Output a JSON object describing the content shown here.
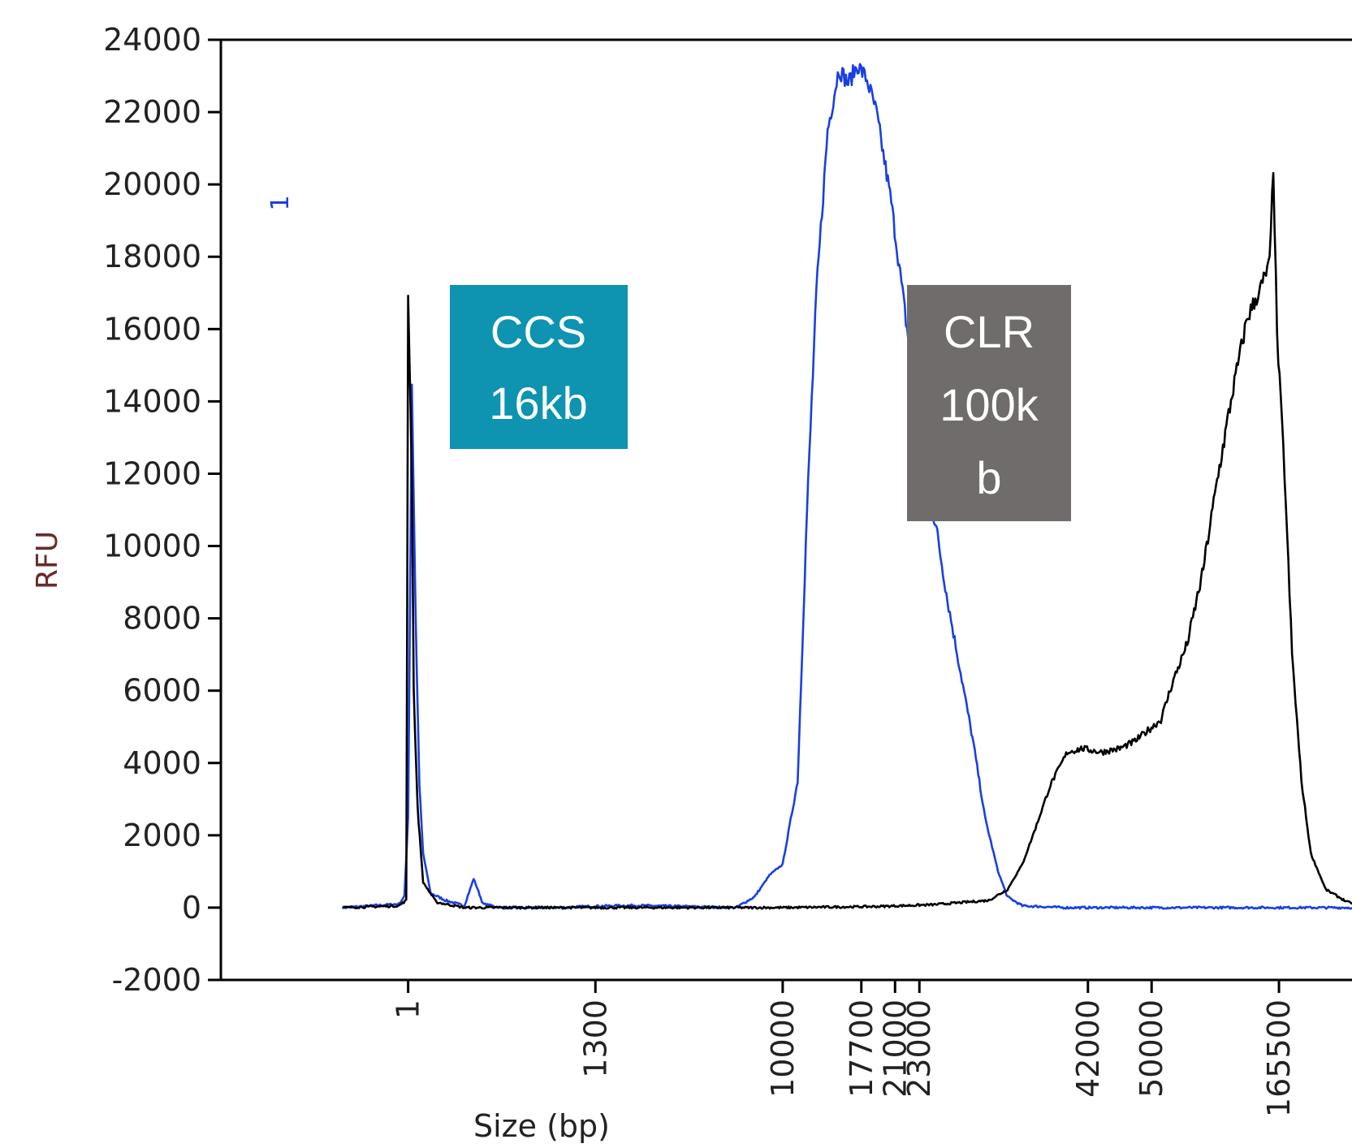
{
  "chart_data": {
    "type": "line",
    "xlabel": "Size (bp)",
    "ylabel": "RFU",
    "ylim": [
      -2000,
      24000
    ],
    "yticks": [
      24000,
      22000,
      20000,
      18000,
      16000,
      14000,
      12000,
      10000,
      8000,
      6000,
      4000,
      2000,
      0,
      -2000
    ],
    "xticks": [
      {
        "label": "1",
        "pos": 1
      },
      {
        "label": "1300",
        "pos": 2
      },
      {
        "label": "10000",
        "pos": 3
      },
      {
        "label": "17700",
        "pos": 3.42
      },
      {
        "label": "21000",
        "pos": 3.6
      },
      {
        "label": "23000",
        "pos": 3.73
      },
      {
        "label": "42000",
        "pos": 4.63
      },
      {
        "label": "50000",
        "pos": 4.97
      },
      {
        "label": "165500",
        "pos": 5.65
      }
    ],
    "marker": "1",
    "annotations": [
      {
        "label": "CCS 16kb",
        "lines": [
          "CCS",
          "16kb"
        ],
        "color": "#0e93b0"
      },
      {
        "label": "CLR 100kb",
        "lines": [
          "CLR",
          "100k",
          "b"
        ],
        "color": "#6f6c6b"
      }
    ],
    "series": [
      {
        "color": "#1a3fe0",
        "points": [
          [
            0.65,
            0
          ],
          [
            0.95,
            100
          ],
          [
            0.98,
            300
          ],
          [
            1.0,
            2500
          ],
          [
            1.02,
            14500
          ],
          [
            1.04,
            8000
          ],
          [
            1.06,
            3400
          ],
          [
            1.08,
            1500
          ],
          [
            1.12,
            400
          ],
          [
            1.2,
            200
          ],
          [
            1.3,
            50
          ],
          [
            1.35,
            800
          ],
          [
            1.4,
            100
          ],
          [
            1.5,
            0
          ],
          [
            1.8,
            0
          ],
          [
            2.0,
            40
          ],
          [
            2.2,
            60
          ],
          [
            2.5,
            30
          ],
          [
            2.75,
            0
          ],
          [
            2.85,
            300
          ],
          [
            2.93,
            900
          ],
          [
            3.0,
            1200
          ],
          [
            3.08,
            3500
          ],
          [
            3.13,
            11000
          ],
          [
            3.18,
            17000
          ],
          [
            3.24,
            21500
          ],
          [
            3.3,
            23200
          ],
          [
            3.35,
            22800
          ],
          [
            3.4,
            23300
          ],
          [
            3.45,
            22900
          ],
          [
            3.5,
            22000
          ],
          [
            3.58,
            19500
          ],
          [
            3.64,
            17000
          ],
          [
            3.7,
            14500
          ],
          [
            3.76,
            12000
          ],
          [
            3.82,
            10500
          ],
          [
            3.88,
            8500
          ],
          [
            3.95,
            6500
          ],
          [
            4.02,
            4500
          ],
          [
            4.08,
            2500
          ],
          [
            4.15,
            1000
          ],
          [
            4.2,
            300
          ],
          [
            4.28,
            50
          ],
          [
            4.5,
            0
          ],
          [
            5.0,
            0
          ],
          [
            6.04,
            0
          ]
        ]
      },
      {
        "color": "#000000",
        "points": [
          [
            0.65,
            0
          ],
          [
            0.95,
            50
          ],
          [
            0.99,
            200
          ],
          [
            1.0,
            17000
          ],
          [
            1.02,
            12000
          ],
          [
            1.03,
            6000
          ],
          [
            1.05,
            2800
          ],
          [
            1.08,
            700
          ],
          [
            1.15,
            150
          ],
          [
            1.3,
            0
          ],
          [
            3.0,
            0
          ],
          [
            3.5,
            30
          ],
          [
            3.8,
            80
          ],
          [
            4.1,
            200
          ],
          [
            4.2,
            500
          ],
          [
            4.28,
            1200
          ],
          [
            4.35,
            2200
          ],
          [
            4.43,
            3400
          ],
          [
            4.52,
            4300
          ],
          [
            4.6,
            4400
          ],
          [
            4.7,
            4300
          ],
          [
            4.8,
            4400
          ],
          [
            4.88,
            4600
          ],
          [
            4.95,
            4900
          ],
          [
            5.02,
            5200
          ],
          [
            5.08,
            6200
          ],
          [
            5.16,
            7300
          ],
          [
            5.24,
            9200
          ],
          [
            5.32,
            11800
          ],
          [
            5.4,
            14200
          ],
          [
            5.48,
            16300
          ],
          [
            5.55,
            17100
          ],
          [
            5.6,
            17800
          ],
          [
            5.62,
            20500
          ],
          [
            5.64,
            15800
          ],
          [
            5.68,
            12000
          ],
          [
            5.72,
            7000
          ],
          [
            5.77,
            3500
          ],
          [
            5.82,
            1500
          ],
          [
            5.9,
            500
          ],
          [
            6.0,
            200
          ],
          [
            6.04,
            100
          ]
        ]
      }
    ]
  }
}
